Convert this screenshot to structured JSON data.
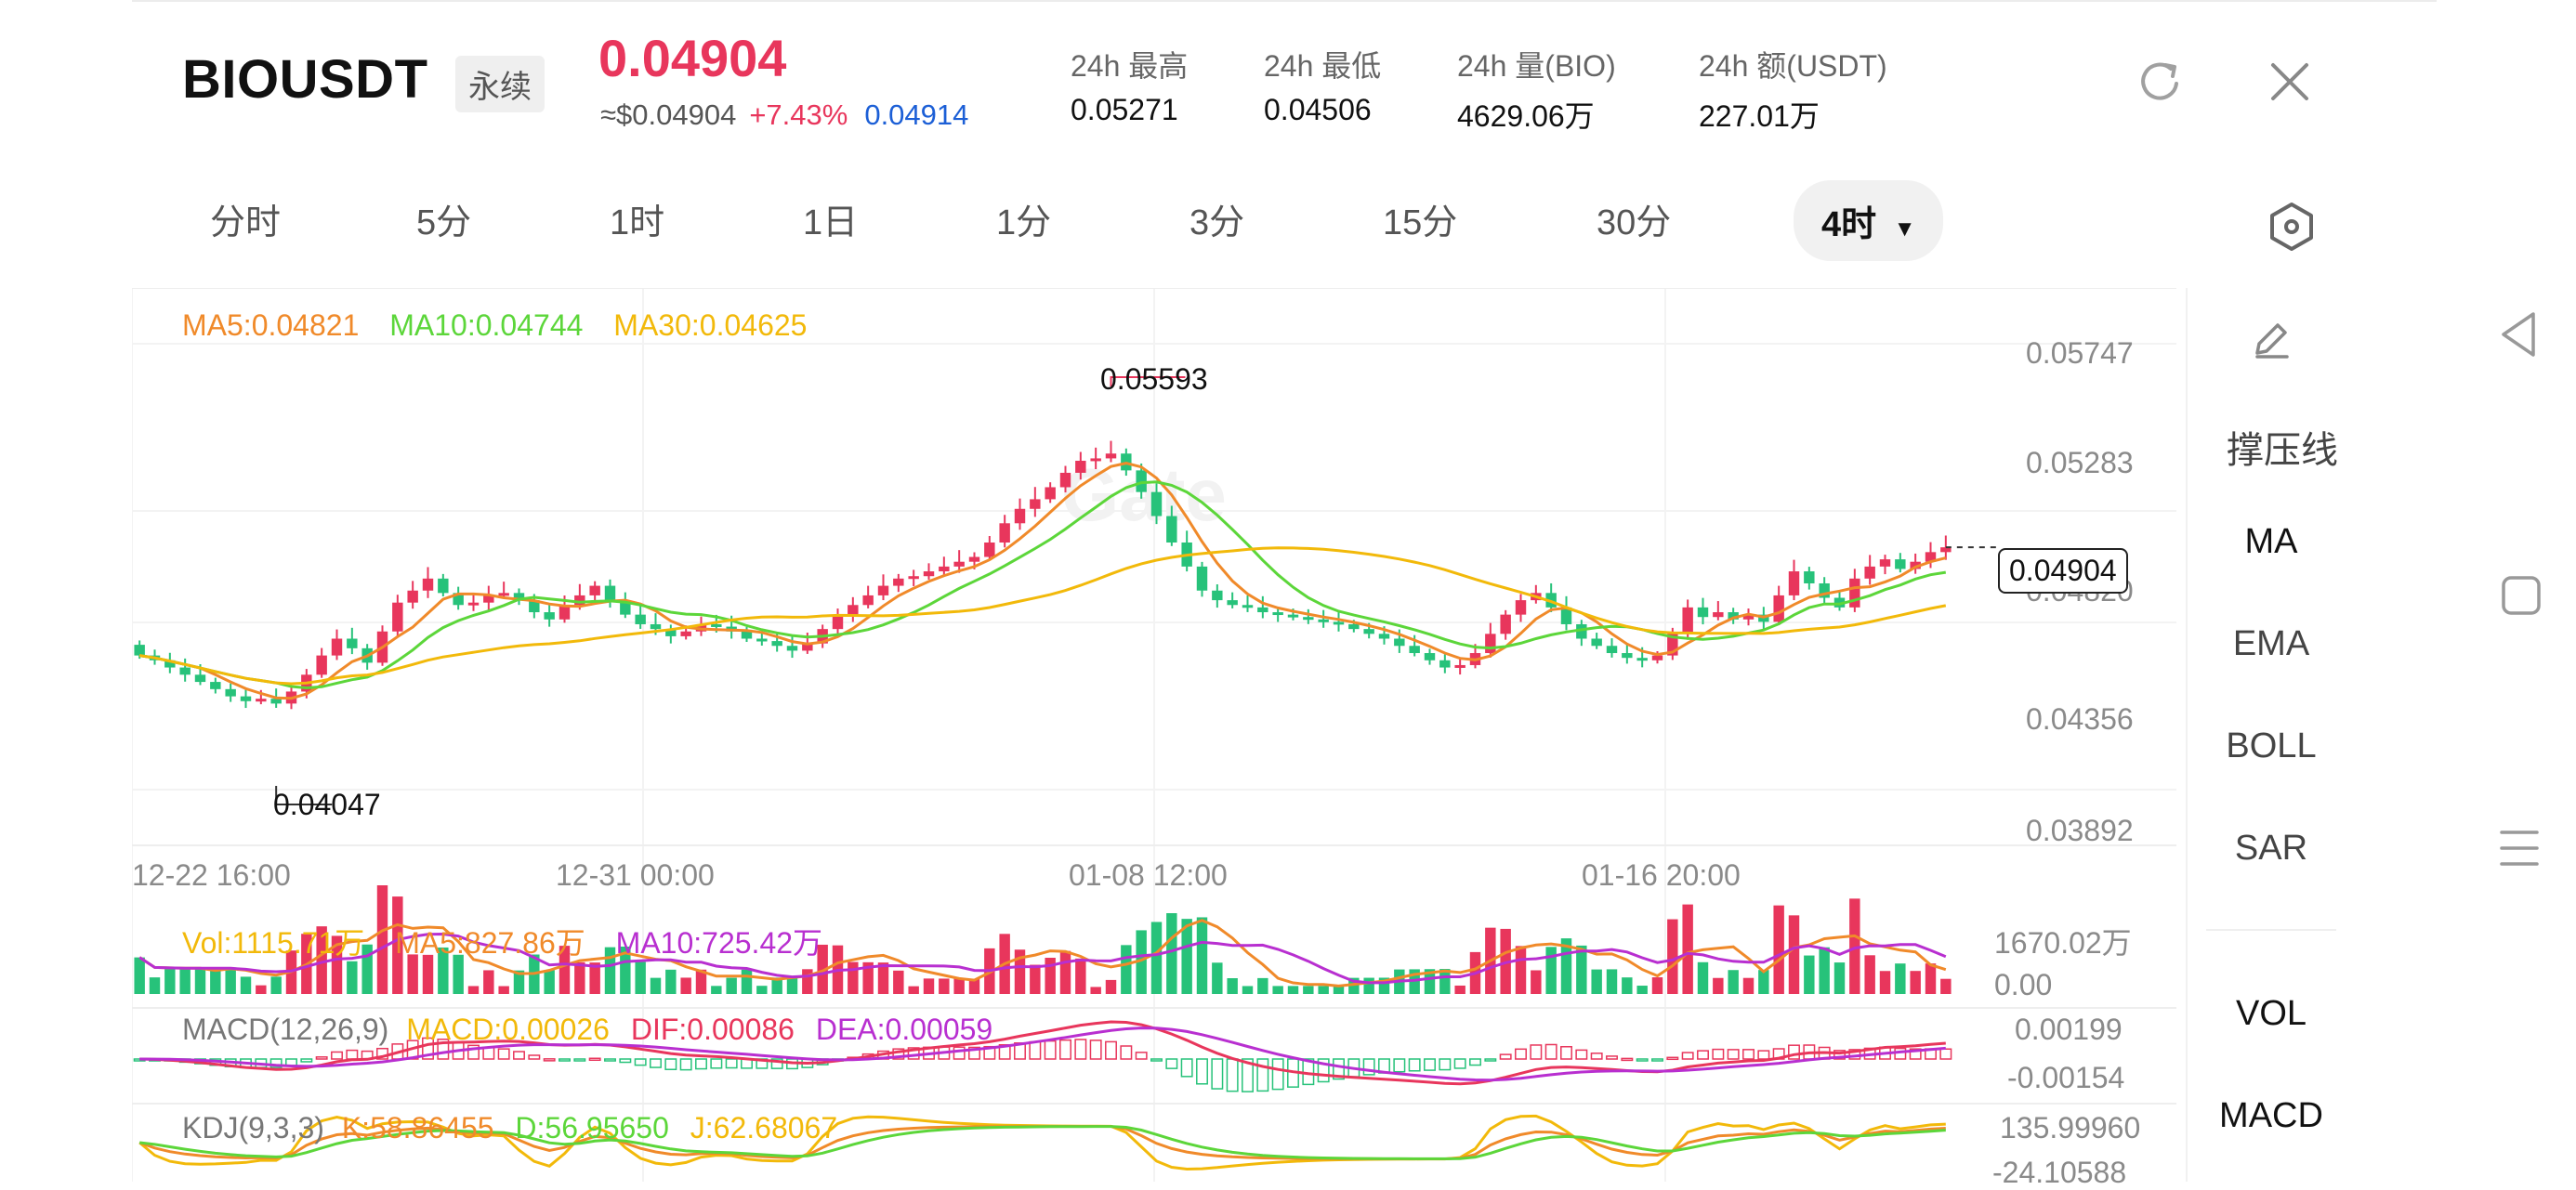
{
  "header": {
    "symbol": "BIOUSDT",
    "contract_type": "永续",
    "last_price": "0.04904",
    "usd_price": "≈$0.04904",
    "change_pct": "+7.43%",
    "mark_price": "0.04914",
    "stats": [
      {
        "label": "24h 最高",
        "value": "0.05271"
      },
      {
        "label": "24h 最低",
        "value": "0.04506"
      },
      {
        "label": "24h 量(BIO)",
        "value": "4629.06万"
      },
      {
        "label": "24h 额(USDT)",
        "value": "227.01万"
      }
    ],
    "refresh_icon": "refresh-icon",
    "close_icon": "close-icon"
  },
  "colors": {
    "up": "#e8365c",
    "down": "#27c27a",
    "ma5": "#f08a2a",
    "ma10": "#5cd63a",
    "ma30": "#f2b90a",
    "mark": "#1c5fd6",
    "purple": "#b82fd0"
  },
  "timeframes": [
    {
      "label": "分时",
      "active": false
    },
    {
      "label": "5分",
      "active": false
    },
    {
      "label": "1时",
      "active": false
    },
    {
      "label": "1日",
      "active": false
    },
    {
      "label": "1分",
      "active": false
    },
    {
      "label": "3分",
      "active": false
    },
    {
      "label": "15分",
      "active": false
    },
    {
      "label": "30分",
      "active": false
    },
    {
      "label": "4时",
      "active": true
    }
  ],
  "settings_icon": "hexagon-settings-icon",
  "main_chart": {
    "legend": {
      "ma5": "MA5:0.04821",
      "ma10": "MA10:0.04744",
      "ma30": "MA30:0.04625"
    },
    "y_ticks": [
      "0.05747",
      "0.05283",
      "0.04820",
      "0.04356",
      "0.03892"
    ],
    "x_ticks": [
      "12-22 16:00",
      "12-31 00:00",
      "01-08 12:00",
      "01-16 20:00"
    ],
    "high_marker": "0.05593",
    "low_marker": "0.04047",
    "current_price_tag": "0.04904",
    "watermark": "Gate"
  },
  "vol_panel": {
    "legend": {
      "vol": "Vol:1115.71万",
      "ma5": "MA5:827.86万",
      "ma10": "MA10:725.42万"
    },
    "y_ticks": [
      "1670.02万",
      "0.00"
    ]
  },
  "macd_panel": {
    "legend": {
      "title": "MACD(12,26,9)",
      "macd": "MACD:0.00026",
      "dif": "DIF:0.00086",
      "dea": "DEA:0.00059"
    },
    "y_ticks": [
      "0.00199",
      "-0.00154"
    ]
  },
  "kdj_panel": {
    "legend": {
      "title": "KDJ(9,3,3)",
      "k": "K:58.86455",
      "d": "D:56.95650",
      "j": "J:62.68067"
    },
    "y_ticks": [
      "135.99960",
      "-24.10588"
    ]
  },
  "side_panel": {
    "draw_icon": "pencil-icon",
    "items": [
      "撑压线",
      "MA",
      "EMA",
      "BOLL",
      "SAR",
      "VOL",
      "MACD"
    ]
  },
  "system_nav": {
    "back": "back-triangle-icon",
    "home": "home-square-icon",
    "menu": "menu-lines-icon"
  },
  "chart_data": {
    "type": "candlestick",
    "ylim": [
      0.03892,
      0.05747
    ],
    "close_series": [
      0.0445,
      0.0443,
      0.044,
      0.0437,
      0.0434,
      0.0431,
      0.0428,
      0.0426,
      0.0427,
      0.0425,
      0.043,
      0.0437,
      0.0445,
      0.0452,
      0.0448,
      0.0442,
      0.0455,
      0.0467,
      0.0472,
      0.0477,
      0.0471,
      0.0466,
      0.0467,
      0.047,
      0.0471,
      0.0468,
      0.0463,
      0.046,
      0.0466,
      0.047,
      0.0474,
      0.0468,
      0.0462,
      0.0458,
      0.0456,
      0.0453,
      0.0455,
      0.0458,
      0.0457,
      0.0455,
      0.0452,
      0.0451,
      0.0449,
      0.0447,
      0.045,
      0.0456,
      0.0462,
      0.0466,
      0.047,
      0.0474,
      0.0477,
      0.0478,
      0.048,
      0.0482,
      0.0484,
      0.0486,
      0.0492,
      0.05,
      0.0506,
      0.051,
      0.0515,
      0.0521,
      0.0526,
      0.0527,
      0.0529,
      0.0522,
      0.0513,
      0.0503,
      0.0492,
      0.0482,
      0.0472,
      0.0468,
      0.0466,
      0.0465,
      0.0463,
      0.0462,
      0.0461,
      0.046,
      0.0459,
      0.0458,
      0.0456,
      0.0454,
      0.0452,
      0.0449,
      0.0446,
      0.0443,
      0.044,
      0.0441,
      0.0446,
      0.0454,
      0.0462,
      0.0468,
      0.0471,
      0.0465,
      0.0458,
      0.0452,
      0.0449,
      0.0446,
      0.0444,
      0.0443,
      0.0445,
      0.0454,
      0.0465,
      0.0461,
      0.0463,
      0.046,
      0.0462,
      0.0459,
      0.047,
      0.048,
      0.0475,
      0.0469,
      0.0465,
      0.0477,
      0.0482,
      0.0485,
      0.0481,
      0.0484,
      0.0488,
      0.049
    ]
  }
}
